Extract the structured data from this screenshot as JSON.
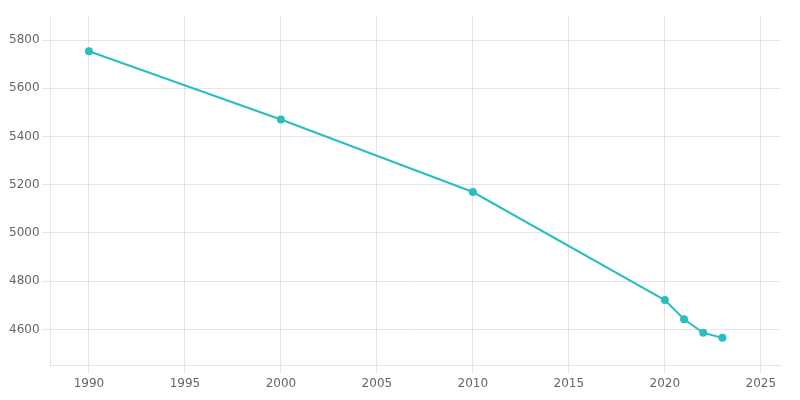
{
  "chart_data": {
    "type": "line",
    "x": [
      1990,
      2000,
      2010,
      2020,
      2021,
      2022,
      2023
    ],
    "values": [
      5754,
      5471,
      5170,
      4722,
      4642,
      4586,
      4565
    ],
    "color": "#2abfbf",
    "marker": "circle",
    "xlim": [
      1988,
      2026
    ],
    "ylim": [
      4450,
      5900
    ],
    "xticks": [
      1990,
      1995,
      2000,
      2005,
      2010,
      2015,
      2020,
      2025
    ],
    "yticks": [
      4600,
      4800,
      5000,
      5200,
      5400,
      5600,
      5800
    ],
    "grid": true
  }
}
